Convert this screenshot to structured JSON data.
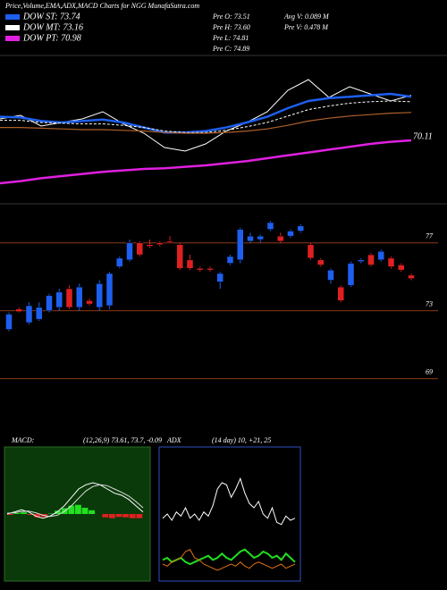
{
  "header": {
    "title": "Price,Volume,EMA,ADX,MACD Charts for NGG MunafaSutra.com",
    "legend": [
      {
        "label": "DOW ST: 73.74",
        "color": "#1e5ff0"
      },
      {
        "label": "DOW MT: 73.16",
        "color": "#ffffff"
      },
      {
        "label": "DOW PT: 70.98",
        "color": "#e020e0"
      }
    ],
    "stats": [
      "Pre   O: 73.51",
      "Pre   H: 73.60",
      "Pre   L: 74.81",
      "Pre   C: 74.89",
      "Avg  V: 0.089  M",
      "Pre   V: 0.478  M"
    ]
  },
  "chart_data": [
    {
      "type": "line",
      "annotation": "70.11",
      "ylim": [
        60,
        80
      ],
      "series": [
        {
          "color": "#ffffff",
          "width": 1,
          "values": [
            71.5,
            72,
            70.5,
            71,
            71.5,
            72.5,
            70.8,
            69.5,
            67.5,
            67,
            68,
            69.8,
            71,
            72.5,
            75.5,
            77,
            74.5,
            76,
            75,
            74,
            74.8
          ]
        },
        {
          "color": "#1e5ff0",
          "width": 2.5,
          "values": [
            71.8,
            71.7,
            71.2,
            71.0,
            71.2,
            71.4,
            71.0,
            70.3,
            69.6,
            69.6,
            69.8,
            70.3,
            71.0,
            71.8,
            73,
            74,
            74.4,
            74.6,
            74.8,
            75,
            74.6
          ]
        },
        {
          "color": "#ffffff",
          "width": 1,
          "dash": true,
          "values": [
            71.3,
            71.3,
            71.0,
            70.9,
            70.8,
            70.8,
            70.6,
            70.3,
            69.8,
            69.6,
            69.6,
            69.9,
            70.4,
            71.0,
            71.9,
            72.8,
            73.3,
            73.7,
            73.9,
            74,
            73.9
          ]
        },
        {
          "color": "#b0602a",
          "width": 1.2,
          "values": [
            70.3,
            70.3,
            70.2,
            70.1,
            70.0,
            70.0,
            69.9,
            69.8,
            69.6,
            69.5,
            69.5,
            69.6,
            69.8,
            70.1,
            70.6,
            71.2,
            71.6,
            71.9,
            72.1,
            72.3,
            72.4
          ]
        },
        {
          "color": "#e020e0",
          "width": 2.5,
          "values": [
            62.5,
            62.8,
            63.2,
            63.5,
            63.8,
            64.1,
            64.3,
            64.5,
            64.6,
            64.8,
            65.0,
            65.3,
            65.6,
            66.0,
            66.4,
            66.8,
            67.2,
            67.6,
            68.0,
            68.3,
            68.5
          ]
        }
      ]
    },
    {
      "type": "candlestick",
      "ylim": [
        65.5,
        79.2
      ],
      "yticks": [
        77,
        73,
        69
      ],
      "grid": true,
      "up_color": "#1e5ff0",
      "down_color": "#e02020",
      "open": [
        71.9,
        73.1,
        72.3,
        72.5,
        73.0,
        73.2,
        74.3,
        73.2,
        73.6,
        73.2,
        73.3,
        75.6,
        76.0,
        77.0,
        76.9,
        77.0,
        77.1,
        76.9,
        76.0,
        75.5,
        75.5,
        74.7,
        75.8,
        76.0,
        77.1,
        77.2,
        77.8,
        77.4,
        77.4,
        77.7,
        76.9,
        76.0,
        74.8,
        74.4,
        74.5,
        75.9,
        76.3,
        76.0,
        76.1,
        75.7,
        75.1
      ],
      "high": [
        72.9,
        73.2,
        73.5,
        73.5,
        74.0,
        74.3,
        74.5,
        74.6,
        73.7,
        74.8,
        75.3,
        76.2,
        77.2,
        77.1,
        77.2,
        77.1,
        77.4,
        77.0,
        76.3,
        75.6,
        75.6,
        75.3,
        76.3,
        77.9,
        77.6,
        77.5,
        78.3,
        77.6,
        77.8,
        78.1,
        77.0,
        76.1,
        75.5,
        74.5,
        75.9,
        76.1,
        76.4,
        76.6,
        76.2,
        75.8,
        75.2
      ],
      "low": [
        71.8,
        72.9,
        72.2,
        72.4,
        72.9,
        73.0,
        73.1,
        73.0,
        73.3,
        73.0,
        73.1,
        75.5,
        75.9,
        76.2,
        76.7,
        76.8,
        77.0,
        75.4,
        75.4,
        75.3,
        75.3,
        74.3,
        75.7,
        75.8,
        77.0,
        77.0,
        77.7,
        77.0,
        77.3,
        77.6,
        76.0,
        75.6,
        74.6,
        73.5,
        74.4,
        75.8,
        75.6,
        75.9,
        75.5,
        75.3,
        74.8
      ],
      "close": [
        72.8,
        72.95,
        73.3,
        73.2,
        73.9,
        74.1,
        73.2,
        74.4,
        73.4,
        74.6,
        75.2,
        76.1,
        77.0,
        76.3,
        76.8,
        76.9,
        77.0,
        75.5,
        75.5,
        75.4,
        75.4,
        75.2,
        76.2,
        77.8,
        77.4,
        77.4,
        78.2,
        77.1,
        77.7,
        78.0,
        76.1,
        75.7,
        75.4,
        73.6,
        75.8,
        76.0,
        75.7,
        76.5,
        75.6,
        75.4,
        74.9
      ]
    },
    {
      "type": "macd",
      "title": "MACD:",
      "subtitle": "(12,26,9) 73.61, 73.7, -0.09",
      "ylim": [
        -1.5,
        1.5
      ],
      "bar_color": "#20e020",
      "series": [
        {
          "color": "#ffffff",
          "width": 1,
          "values": [
            0,
            0.05,
            0.1,
            0.05,
            -0.05,
            -0.1,
            -0.05,
            0.05,
            0.2,
            0.4,
            0.6,
            0.7,
            0.75,
            0.7,
            0.6,
            0.5,
            0.45,
            0.35,
            0.2,
            0.05
          ]
        },
        {
          "color": "#dddddd",
          "width": 1,
          "values": [
            0.02,
            0.03,
            0.06,
            0.07,
            0.03,
            -0.03,
            -0.06,
            -0.03,
            0.06,
            0.2,
            0.38,
            0.55,
            0.66,
            0.7,
            0.68,
            0.6,
            0.52,
            0.43,
            0.3,
            0.15
          ]
        }
      ],
      "histogram": [
        -0.02,
        0.02,
        0.04,
        -0.02,
        -0.08,
        -0.07,
        0.01,
        0.08,
        0.14,
        0.2,
        0.22,
        0.15,
        0.09,
        0,
        -0.08,
        -0.1,
        -0.07,
        -0.08,
        -0.1,
        -0.1
      ]
    },
    {
      "type": "line",
      "title": "ADX",
      "subtitle": "(14 day) 10, +21, 25",
      "ylim": [
        0,
        60
      ],
      "series": [
        {
          "color": "#ffffff",
          "width": 1,
          "values": [
            28,
            30,
            27,
            31,
            29,
            33,
            28,
            30,
            27,
            31,
            29,
            34,
            42,
            45,
            44,
            38,
            42,
            47,
            40,
            35,
            33,
            36,
            30,
            28,
            33,
            26,
            25,
            29,
            27,
            28
          ]
        },
        {
          "color": "#20e020",
          "width": 2,
          "values": [
            8,
            9,
            7,
            8,
            9,
            7,
            6,
            7,
            8,
            9,
            10,
            8,
            9,
            11,
            9,
            8,
            10,
            12,
            13,
            11,
            9,
            10,
            12,
            11,
            9,
            10,
            8,
            11,
            9,
            7
          ]
        },
        {
          "color": "#e07010",
          "width": 1,
          "values": [
            6,
            5,
            7,
            8,
            9,
            12,
            13,
            9,
            8,
            6,
            5,
            4,
            3,
            4,
            5,
            6,
            5,
            7,
            5,
            4,
            6,
            7,
            6,
            5,
            4,
            5,
            6,
            4,
            5,
            6
          ]
        }
      ]
    }
  ]
}
